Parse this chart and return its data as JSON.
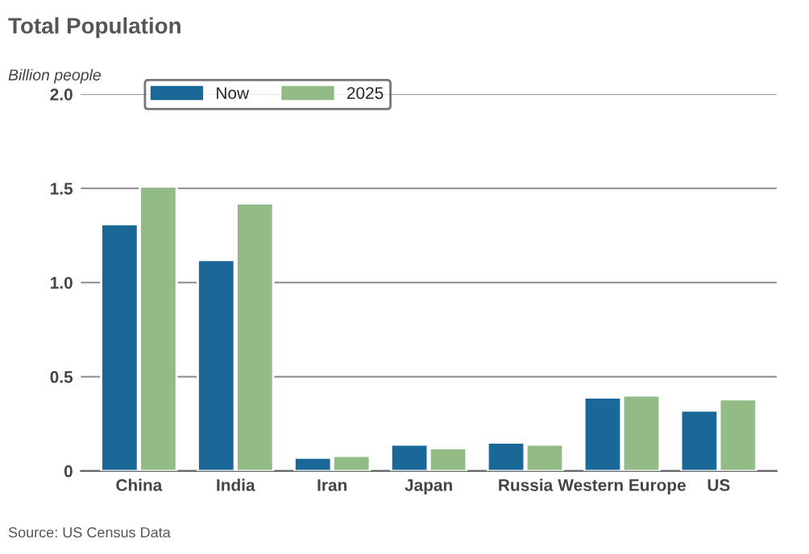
{
  "chart_data": {
    "type": "bar",
    "title": "Total Population",
    "ylabel": "Billion people",
    "categories": [
      "China",
      "India",
      "Iran",
      "Japan",
      "Russia",
      "Western Europe",
      "US"
    ],
    "series": [
      {
        "name": "Now",
        "color": "#1a6898",
        "values": [
          1.31,
          1.12,
          0.07,
          0.14,
          0.15,
          0.39,
          0.32
        ]
      },
      {
        "name": "2025",
        "color": "#93bb85",
        "values": [
          1.51,
          1.42,
          0.08,
          0.12,
          0.14,
          0.4,
          0.38
        ]
      }
    ],
    "ylim": [
      0,
      2.0
    ],
    "yticks": [
      {
        "value": 0,
        "label": "0"
      },
      {
        "value": 0.5,
        "label": "0.5"
      },
      {
        "value": 1.0,
        "label": "1.0"
      },
      {
        "value": 1.5,
        "label": "1.5"
      },
      {
        "value": 2.0,
        "label": "2.0"
      }
    ],
    "grid": "y",
    "legend": "top left",
    "annotations": [
      "Source: US Census Data"
    ]
  }
}
